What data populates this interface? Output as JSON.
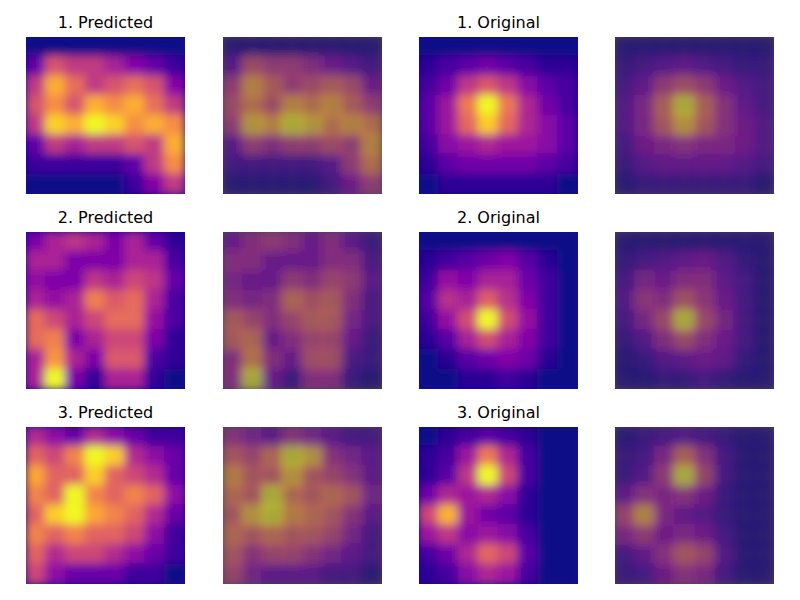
{
  "chart_data": [
    {
      "type": "heatmap",
      "title": "1. Predicted",
      "tick_labels": false,
      "cells": [
        [
          0.05,
          0.05,
          0.05,
          0.05,
          0.05,
          0.05,
          0.05,
          0.05
        ],
        [
          0.15,
          0.35,
          0.3,
          0.3,
          0.25,
          0.2,
          0.15,
          0.1
        ],
        [
          0.3,
          0.5,
          0.4,
          0.3,
          0.35,
          0.4,
          0.35,
          0.2
        ],
        [
          0.35,
          0.45,
          0.35,
          0.5,
          0.45,
          0.5,
          0.4,
          0.3
        ],
        [
          0.3,
          0.55,
          0.5,
          0.6,
          0.55,
          0.45,
          0.5,
          0.45
        ],
        [
          0.15,
          0.3,
          0.25,
          0.3,
          0.3,
          0.35,
          0.3,
          0.5
        ],
        [
          0.1,
          0.1,
          0.1,
          0.1,
          0.1,
          0.15,
          0.3,
          0.45
        ],
        [
          0.05,
          0.05,
          0.05,
          0.05,
          0.05,
          0.1,
          0.2,
          0.3
        ]
      ]
    },
    {
      "type": "heatmap",
      "title": "1. Original",
      "tick_labels": false,
      "cells": [
        [
          0,
          0,
          0,
          0,
          0,
          0,
          0,
          0
        ],
        [
          0.05,
          0.1,
          0.15,
          0.2,
          0.15,
          0.1,
          0.05,
          0.05
        ],
        [
          0.1,
          0.2,
          0.4,
          0.5,
          0.4,
          0.25,
          0.15,
          0.1
        ],
        [
          0.15,
          0.3,
          0.6,
          0.9,
          0.6,
          0.35,
          0.2,
          0.1
        ],
        [
          0.15,
          0.3,
          0.55,
          0.8,
          0.55,
          0.35,
          0.25,
          0.15
        ],
        [
          0.1,
          0.25,
          0.3,
          0.35,
          0.3,
          0.3,
          0.25,
          0.15
        ],
        [
          0.05,
          0.15,
          0.2,
          0.2,
          0.2,
          0.2,
          0.15,
          0.1
        ],
        [
          0,
          0.05,
          0.05,
          0.05,
          0.05,
          0.05,
          0.05,
          0
        ]
      ]
    },
    {
      "type": "heatmap",
      "title": "2. Predicted",
      "tick_labels": false,
      "cells": [
        [
          0.2,
          0.3,
          0.35,
          0.3,
          0.2,
          0.3,
          0.15,
          0.05
        ],
        [
          0.3,
          0.3,
          0.2,
          0.2,
          0.2,
          0.3,
          0.3,
          0.1
        ],
        [
          0.25,
          0.2,
          0.2,
          0.35,
          0.3,
          0.4,
          0.35,
          0.15
        ],
        [
          0.3,
          0.25,
          0.3,
          0.55,
          0.45,
          0.5,
          0.3,
          0.1
        ],
        [
          0.5,
          0.4,
          0.3,
          0.4,
          0.5,
          0.5,
          0.25,
          0.1
        ],
        [
          0.5,
          0.55,
          0.2,
          0.3,
          0.4,
          0.4,
          0.2,
          0.05
        ],
        [
          0.3,
          0.6,
          0.3,
          0.2,
          0.45,
          0.45,
          0.1,
          0.05
        ],
        [
          0.3,
          0.8,
          0.2,
          0.05,
          0.3,
          0.3,
          0.05,
          0
        ]
      ]
    },
    {
      "type": "heatmap",
      "title": "2. Original",
      "tick_labels": false,
      "cells": [
        [
          0,
          0,
          0,
          0,
          0,
          0,
          0,
          0
        ],
        [
          0.05,
          0.1,
          0.15,
          0.2,
          0.25,
          0.15,
          0.05,
          0
        ],
        [
          0.1,
          0.3,
          0.25,
          0.35,
          0.35,
          0.2,
          0.1,
          0
        ],
        [
          0.15,
          0.4,
          0.35,
          0.55,
          0.4,
          0.25,
          0.1,
          0
        ],
        [
          0.1,
          0.3,
          0.5,
          0.95,
          0.5,
          0.3,
          0.1,
          0
        ],
        [
          0.05,
          0.15,
          0.35,
          0.5,
          0.35,
          0.25,
          0.1,
          0
        ],
        [
          0,
          0.05,
          0.15,
          0.2,
          0.25,
          0.2,
          0.05,
          0
        ],
        [
          0,
          0,
          0.05,
          0.05,
          0.1,
          0.05,
          0,
          0
        ]
      ]
    },
    {
      "type": "heatmap",
      "title": "3. Predicted",
      "tick_labels": false,
      "cells": [
        [
          0.2,
          0.15,
          0.1,
          0.2,
          0.15,
          0.1,
          0.05,
          0.05
        ],
        [
          0.3,
          0.25,
          0.35,
          0.5,
          0.45,
          0.2,
          0.15,
          0.1
        ],
        [
          0.4,
          0.3,
          0.3,
          0.45,
          0.3,
          0.25,
          0.2,
          0.1
        ],
        [
          0.35,
          0.3,
          0.5,
          0.35,
          0.3,
          0.35,
          0.3,
          0.15
        ],
        [
          0.3,
          0.45,
          0.5,
          0.4,
          0.35,
          0.3,
          0.2,
          0.1
        ],
        [
          0.35,
          0.3,
          0.35,
          0.3,
          0.3,
          0.25,
          0.15,
          0.05
        ],
        [
          0.3,
          0.2,
          0.25,
          0.25,
          0.2,
          0.15,
          0.1,
          0.05
        ],
        [
          0.25,
          0.15,
          0.1,
          0.1,
          0.1,
          0.05,
          0.05,
          0
        ]
      ]
    },
    {
      "type": "heatmap",
      "title": "3. Original",
      "tick_labels": false,
      "cells": [
        [
          0,
          0.05,
          0.1,
          0.15,
          0.1,
          0.05,
          0,
          0
        ],
        [
          0.05,
          0.1,
          0.3,
          0.6,
          0.35,
          0.1,
          0,
          0
        ],
        [
          0.05,
          0.15,
          0.4,
          0.9,
          0.45,
          0.1,
          0,
          0
        ],
        [
          0.2,
          0.35,
          0.3,
          0.35,
          0.25,
          0.05,
          0,
          0
        ],
        [
          0.45,
          0.75,
          0.3,
          0.2,
          0.15,
          0.05,
          0,
          0
        ],
        [
          0.3,
          0.4,
          0.25,
          0.3,
          0.25,
          0.1,
          0,
          0
        ],
        [
          0.1,
          0.2,
          0.35,
          0.55,
          0.45,
          0.15,
          0,
          0
        ],
        [
          0.05,
          0.1,
          0.25,
          0.35,
          0.3,
          0.1,
          0,
          0
        ]
      ]
    }
  ]
}
